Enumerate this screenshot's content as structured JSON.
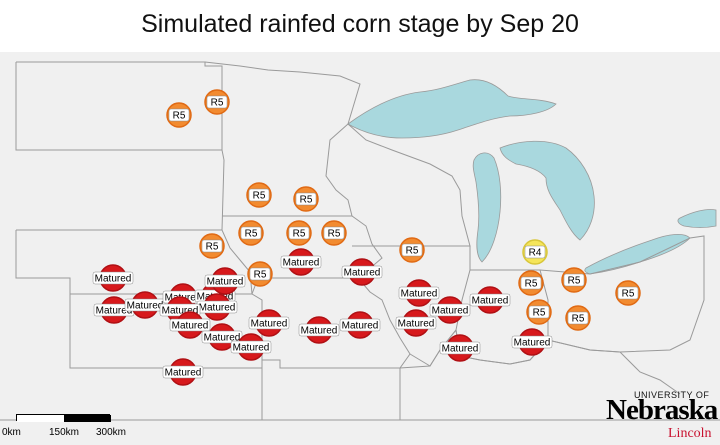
{
  "title": "Simulated rainfed corn stage by Sep 20",
  "colors": {
    "water": "#a9d8de",
    "land": "#f0f0f0",
    "border": "#9a9a9a",
    "matured": "#d7191c",
    "r5": "#f28b30",
    "r4": "#f5e55a",
    "logo_red": "#c8102e"
  },
  "scale_bar": {
    "labels": [
      "0km",
      "150km",
      "300km"
    ]
  },
  "logo": {
    "university": "UNIVERSITY OF",
    "name": "Nebraska",
    "city": "Lincoln"
  },
  "legend_note": "",
  "stations": [
    {
      "label": "R5"
    },
    {
      "label": "R5"
    },
    {
      "label": "R5"
    },
    {
      "label": "R5"
    },
    {
      "label": "R5"
    },
    {
      "label": "R5"
    },
    {
      "label": "R5"
    },
    {
      "label": "R5"
    },
    {
      "label": "R5"
    },
    {
      "label": "R5"
    },
    {
      "label": "R5"
    },
    {
      "label": "R4"
    },
    {
      "label": "R5"
    },
    {
      "label": "R5"
    },
    {
      "label": "R5"
    },
    {
      "label": "R5"
    },
    {
      "label": "R5"
    },
    {
      "label": "Matured"
    },
    {
      "label": "Matured"
    },
    {
      "label": "Matured"
    },
    {
      "label": "Matured"
    },
    {
      "label": "Matured"
    },
    {
      "label": "Matured"
    },
    {
      "label": "Matured"
    },
    {
      "label": "Matured"
    },
    {
      "label": "Matured"
    },
    {
      "label": "Matured"
    },
    {
      "label": "Matured"
    },
    {
      "label": "Matured"
    },
    {
      "label": "Matured"
    },
    {
      "label": "Matured"
    },
    {
      "label": "Matured"
    },
    {
      "label": "Matured"
    },
    {
      "label": "Matured"
    },
    {
      "label": "Matured"
    },
    {
      "label": "Matured"
    },
    {
      "label": "Matured"
    },
    {
      "label": "Matured"
    },
    {
      "label": "Matured"
    },
    {
      "label": "Matured"
    },
    {
      "label": "Matured"
    }
  ]
}
